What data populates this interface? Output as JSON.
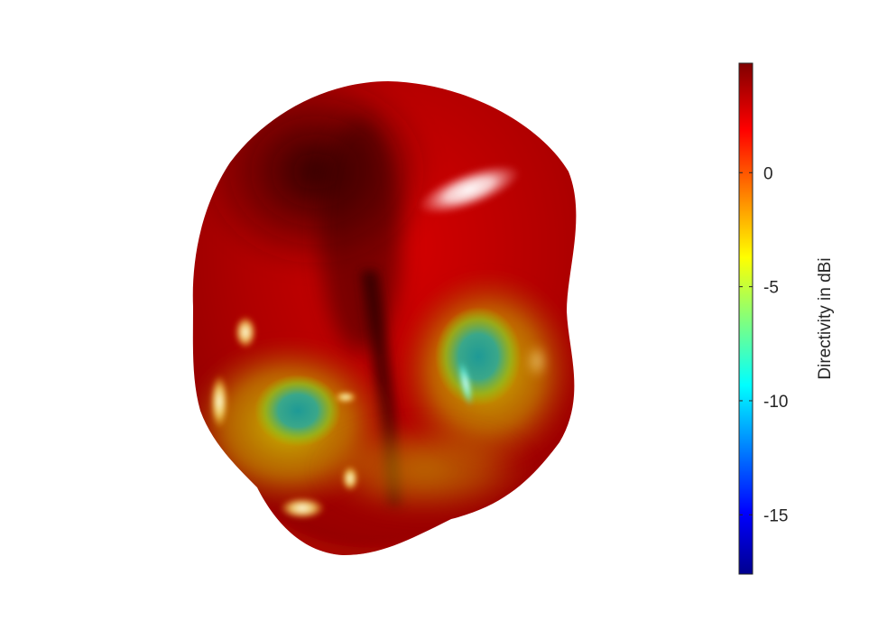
{
  "chart_data": {
    "type": "heatmap",
    "title": "",
    "colorbar": {
      "label": "Directivity in dBi",
      "colormap": "jet",
      "limits": [
        -17.6,
        4.8
      ],
      "ticks": [
        {
          "value": 0,
          "label": "0"
        },
        {
          "value": -5,
          "label": "-5"
        },
        {
          "value": -10,
          "label": "-10"
        },
        {
          "value": -15,
          "label": "-15"
        }
      ],
      "placement": "right"
    },
    "surface": {
      "description_type": "3D radiation pattern",
      "max_color": "#5a0000",
      "typical_color": "#c80000",
      "min_color": "#1fa5a0"
    }
  }
}
